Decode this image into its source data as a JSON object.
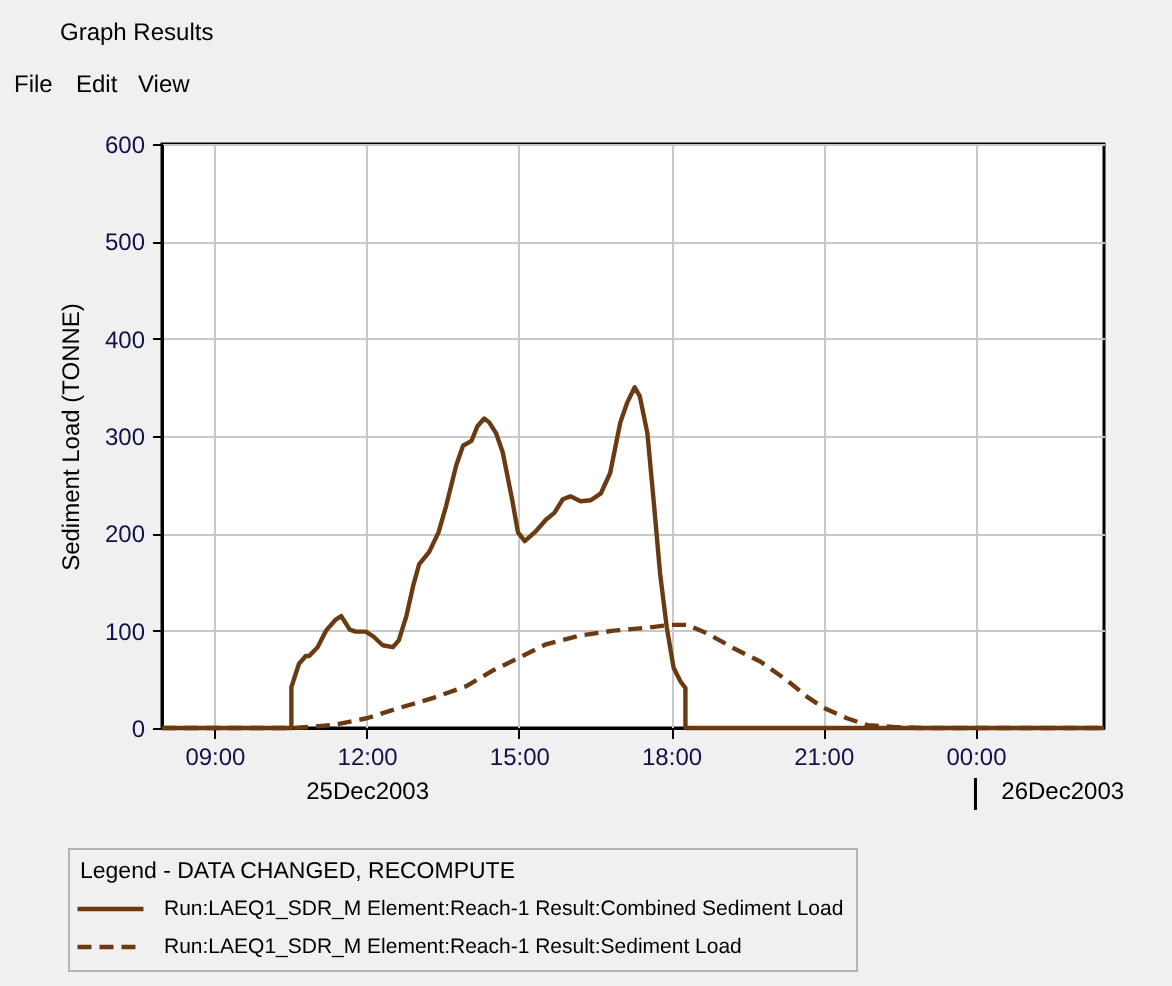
{
  "chart_data": {
    "type": "line",
    "title": "Graph Results",
    "ylabel": "Sediment Load (TONNE)",
    "legend_title": "Legend - DATA CHANGED, RECOMPUTE",
    "annotations": [
      "File",
      "Edit",
      "View"
    ],
    "xlim": [
      "2003-12-25T07:58",
      "2003-12-26T02:32"
    ],
    "xticks": [
      {
        "value": "2003-12-25T09:00",
        "label": "09:00"
      },
      {
        "value": "2003-12-25T12:00",
        "label": "12:00"
      },
      {
        "value": "2003-12-25T15:00",
        "label": "15:00"
      },
      {
        "value": "2003-12-25T18:00",
        "label": "18:00"
      },
      {
        "value": "2003-12-25T21:00",
        "label": "21:00"
      },
      {
        "value": "2003-12-26T00:00",
        "label": "00:00"
      }
    ],
    "x2lim": [
      "2003-12-25T07:58",
      "2003-12-26T02:32"
    ],
    "x2ticks": [
      {
        "value": "2003-12-25T12:00",
        "label": "25Dec2003"
      },
      {
        "value": "2003-12-26T00:00",
        "label": null
      },
      {
        "value": "2003-12-26T01:42",
        "label": "26Dec2003"
      }
    ],
    "ylim": [
      0,
      600
    ],
    "yticks": [
      0,
      100,
      200,
      300,
      400,
      500,
      600
    ],
    "grid": true,
    "legend": "bottom",
    "marker": "none",
    "series": [
      {
        "name": "Run:LAEQ1_SDR_M Element:Reach-1 Result:Combined Sediment Load",
        "color": "#6b3a10",
        "line_style": "solid",
        "x": [
          "2003-12-25T07:58",
          "2003-12-25T10:31",
          "2003-12-25T10:31",
          "2003-12-25T10:40",
          "2003-12-25T10:48",
          "2003-12-25T10:52",
          "2003-12-25T11:02",
          "2003-12-25T11:12",
          "2003-12-25T11:23",
          "2003-12-25T11:30",
          "2003-12-25T11:40",
          "2003-12-25T11:47",
          "2003-12-25T11:59",
          "2003-12-25T12:08",
          "2003-12-25T12:19",
          "2003-12-25T12:31",
          "2003-12-25T12:38",
          "2003-12-25T12:47",
          "2003-12-25T12:55",
          "2003-12-25T13:02",
          "2003-12-25T13:14",
          "2003-12-25T13:25",
          "2003-12-25T13:34",
          "2003-12-25T13:46",
          "2003-12-25T13:54",
          "2003-12-25T14:04",
          "2003-12-25T14:11",
          "2003-12-25T14:19",
          "2003-12-25T14:25",
          "2003-12-25T14:33",
          "2003-12-25T14:41",
          "2003-12-25T14:52",
          "2003-12-25T14:59",
          "2003-12-25T15:07",
          "2003-12-25T15:20",
          "2003-12-25T15:32",
          "2003-12-25T15:42",
          "2003-12-25T15:52",
          "2003-12-25T16:01",
          "2003-12-25T16:13",
          "2003-12-25T16:25",
          "2003-12-25T16:37",
          "2003-12-25T16:48",
          "2003-12-25T17:00",
          "2003-12-25T17:08",
          "2003-12-25T17:17",
          "2003-12-25T17:23",
          "2003-12-25T17:32",
          "2003-12-25T17:40",
          "2003-12-25T17:47",
          "2003-12-25T17:55",
          "2003-12-25T18:03",
          "2003-12-25T18:11",
          "2003-12-25T18:17",
          "2003-12-25T18:17",
          "2003-12-26T02:32"
        ],
        "values": [
          0,
          0,
          42,
          66,
          74,
          74,
          83,
          100,
          111,
          115,
          101,
          99,
          99,
          94,
          85,
          83,
          90,
          115,
          146,
          168,
          181,
          201,
          228,
          270,
          290,
          295,
          310,
          318,
          314,
          303,
          283,
          235,
          201,
          192,
          202,
          214,
          221,
          235,
          238,
          233,
          234,
          241,
          262,
          314,
          334,
          350,
          341,
          303,
          228,
          159,
          103,
          62,
          48,
          41,
          0,
          0
        ]
      },
      {
        "name": "Run:LAEQ1_SDR_M Element:Reach-1 Result:Sediment Load",
        "color": "#6b3a10",
        "line_style": "dashed",
        "x": [
          "2003-12-25T07:58",
          "2003-12-25T10:34",
          "2003-12-25T11:20",
          "2003-12-25T12:00",
          "2003-12-25T12:40",
          "2003-12-25T13:19",
          "2003-12-25T13:58",
          "2003-12-25T14:29",
          "2003-12-25T15:00",
          "2003-12-25T15:32",
          "2003-12-25T16:12",
          "2003-12-25T16:52",
          "2003-12-25T17:31",
          "2003-12-25T18:00",
          "2003-12-25T18:19",
          "2003-12-25T18:43",
          "2003-12-25T19:14",
          "2003-12-25T19:46",
          "2003-12-25T20:17",
          "2003-12-25T20:41",
          "2003-12-25T21:00",
          "2003-12-25T21:28",
          "2003-12-25T21:52",
          "2003-12-25T22:23",
          "2003-12-25T22:55",
          "2003-12-26T02:32"
        ],
        "values": [
          0,
          0,
          3,
          10,
          21,
          31,
          43,
          59,
          72,
          86,
          95,
          100,
          103,
          106,
          106,
          97,
          82,
          68,
          49,
          32,
          21,
          10,
          3,
          1,
          0,
          0
        ]
      }
    ]
  }
}
